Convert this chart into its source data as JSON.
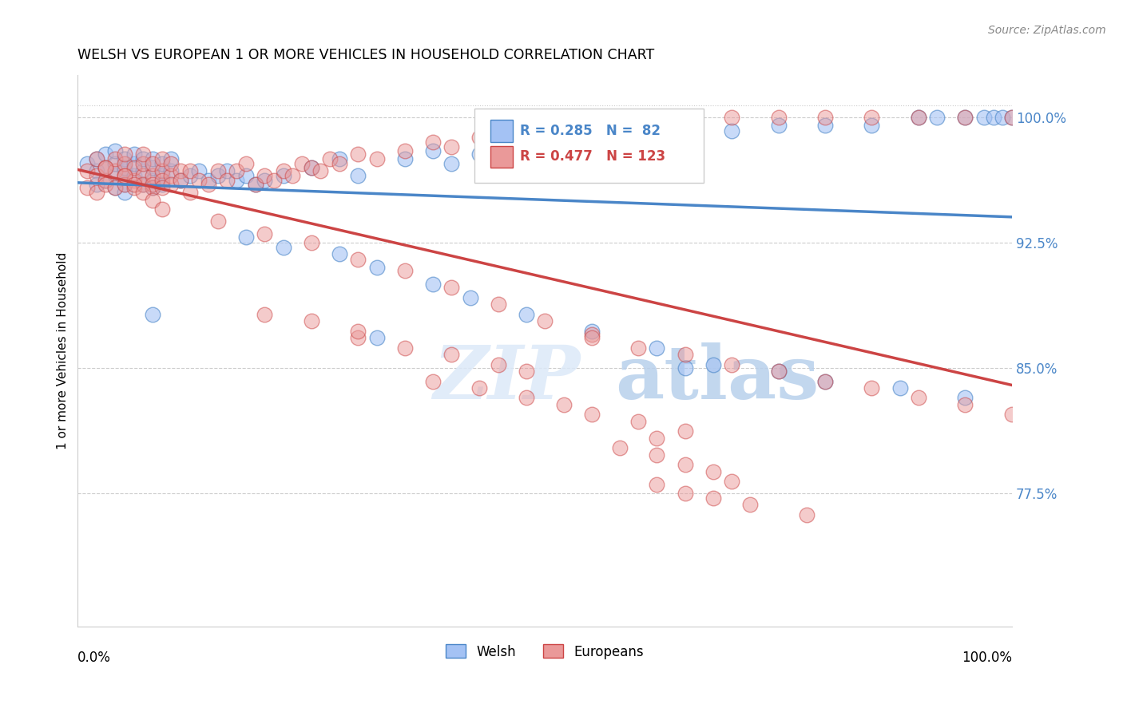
{
  "title": "WELSH VS EUROPEAN 1 OR MORE VEHICLES IN HOUSEHOLD CORRELATION CHART",
  "source": "Source: ZipAtlas.com",
  "ylabel": "1 or more Vehicles in Household",
  "yticks": [
    0.775,
    0.85,
    0.925,
    1.0
  ],
  "ytick_labels": [
    "77.5%",
    "85.0%",
    "92.5%",
    "100.0%"
  ],
  "xlim": [
    0.0,
    1.0
  ],
  "ylim": [
    0.695,
    1.025
  ],
  "welsh_R": 0.285,
  "welsh_N": 82,
  "european_R": 0.477,
  "european_N": 123,
  "welsh_color": "#a4c2f4",
  "european_color": "#ea9999",
  "welsh_line_color": "#4a86c8",
  "european_line_color": "#cc4444",
  "watermark_zip": "ZIP",
  "watermark_atlas": "atlas",
  "legend_labels": [
    "Welsh",
    "Europeans"
  ],
  "welsh_scatter_x": [
    0.01,
    0.02,
    0.02,
    0.03,
    0.03,
    0.03,
    0.04,
    0.04,
    0.04,
    0.04,
    0.05,
    0.05,
    0.05,
    0.05,
    0.05,
    0.06,
    0.06,
    0.06,
    0.07,
    0.07,
    0.07,
    0.08,
    0.08,
    0.08,
    0.08,
    0.09,
    0.09,
    0.09,
    0.1,
    0.1,
    0.11,
    0.12,
    0.13,
    0.14,
    0.15,
    0.16,
    0.17,
    0.18,
    0.19,
    0.2,
    0.22,
    0.25,
    0.28,
    0.3,
    0.35,
    0.38,
    0.4,
    0.43,
    0.47,
    0.5,
    0.55,
    0.6,
    0.65,
    0.7,
    0.75,
    0.8,
    0.85,
    0.9,
    0.92,
    0.95,
    0.97,
    0.98,
    0.99,
    1.0,
    0.18,
    0.22,
    0.28,
    0.32,
    0.38,
    0.42,
    0.48,
    0.55,
    0.62,
    0.68,
    0.75,
    0.8,
    0.88,
    0.95,
    0.02,
    0.08,
    0.32,
    0.65
  ],
  "welsh_scatter_y": [
    0.972,
    0.968,
    0.975,
    0.962,
    0.97,
    0.978,
    0.958,
    0.965,
    0.972,
    0.98,
    0.96,
    0.968,
    0.975,
    0.955,
    0.97,
    0.965,
    0.972,
    0.978,
    0.96,
    0.968,
    0.975,
    0.962,
    0.97,
    0.958,
    0.975,
    0.965,
    0.972,
    0.96,
    0.968,
    0.975,
    0.962,
    0.965,
    0.968,
    0.962,
    0.965,
    0.968,
    0.962,
    0.965,
    0.96,
    0.962,
    0.965,
    0.97,
    0.975,
    0.965,
    0.975,
    0.98,
    0.972,
    0.978,
    0.982,
    0.98,
    0.985,
    0.99,
    0.988,
    0.992,
    0.995,
    0.995,
    0.995,
    1.0,
    1.0,
    1.0,
    1.0,
    1.0,
    1.0,
    1.0,
    0.928,
    0.922,
    0.918,
    0.91,
    0.9,
    0.892,
    0.882,
    0.872,
    0.862,
    0.852,
    0.848,
    0.842,
    0.838,
    0.832,
    0.96,
    0.882,
    0.868,
    0.85
  ],
  "european_scatter_x": [
    0.01,
    0.01,
    0.02,
    0.02,
    0.02,
    0.03,
    0.03,
    0.03,
    0.04,
    0.04,
    0.04,
    0.05,
    0.05,
    0.05,
    0.05,
    0.06,
    0.06,
    0.06,
    0.07,
    0.07,
    0.07,
    0.07,
    0.08,
    0.08,
    0.08,
    0.08,
    0.09,
    0.09,
    0.09,
    0.09,
    0.1,
    0.1,
    0.1,
    0.11,
    0.11,
    0.12,
    0.12,
    0.13,
    0.14,
    0.15,
    0.16,
    0.17,
    0.18,
    0.19,
    0.2,
    0.21,
    0.22,
    0.23,
    0.24,
    0.25,
    0.26,
    0.27,
    0.28,
    0.3,
    0.32,
    0.35,
    0.38,
    0.4,
    0.43,
    0.45,
    0.48,
    0.5,
    0.55,
    0.6,
    0.65,
    0.7,
    0.75,
    0.8,
    0.85,
    0.9,
    0.95,
    1.0,
    0.15,
    0.2,
    0.25,
    0.3,
    0.35,
    0.4,
    0.45,
    0.5,
    0.55,
    0.3,
    0.35,
    0.4,
    0.45,
    0.48,
    0.38,
    0.43,
    0.48,
    0.52,
    0.55,
    0.6,
    0.65,
    0.62,
    0.58,
    0.62,
    0.65,
    0.68,
    0.7,
    0.55,
    0.6,
    0.65,
    0.7,
    0.75,
    0.8,
    0.85,
    0.9,
    0.95,
    1.0,
    0.03,
    0.05,
    0.06,
    0.07,
    0.08,
    0.09,
    0.2,
    0.25,
    0.3,
    0.62,
    0.65,
    0.68,
    0.72,
    0.78
  ],
  "european_scatter_y": [
    0.958,
    0.968,
    0.965,
    0.975,
    0.955,
    0.962,
    0.97,
    0.96,
    0.968,
    0.975,
    0.958,
    0.965,
    0.972,
    0.96,
    0.978,
    0.962,
    0.97,
    0.958,
    0.965,
    0.972,
    0.96,
    0.978,
    0.965,
    0.958,
    0.972,
    0.96,
    0.968,
    0.975,
    0.962,
    0.958,
    0.965,
    0.972,
    0.96,
    0.968,
    0.962,
    0.968,
    0.955,
    0.962,
    0.96,
    0.968,
    0.962,
    0.968,
    0.972,
    0.96,
    0.965,
    0.962,
    0.968,
    0.965,
    0.972,
    0.97,
    0.968,
    0.975,
    0.972,
    0.978,
    0.975,
    0.98,
    0.985,
    0.982,
    0.988,
    0.99,
    0.992,
    0.99,
    0.995,
    0.998,
    1.0,
    1.0,
    1.0,
    1.0,
    1.0,
    1.0,
    1.0,
    1.0,
    0.938,
    0.93,
    0.925,
    0.915,
    0.908,
    0.898,
    0.888,
    0.878,
    0.87,
    0.868,
    0.862,
    0.858,
    0.852,
    0.848,
    0.842,
    0.838,
    0.832,
    0.828,
    0.822,
    0.818,
    0.812,
    0.808,
    0.802,
    0.798,
    0.792,
    0.788,
    0.782,
    0.868,
    0.862,
    0.858,
    0.852,
    0.848,
    0.842,
    0.838,
    0.832,
    0.828,
    0.822,
    0.97,
    0.965,
    0.96,
    0.955,
    0.95,
    0.945,
    0.882,
    0.878,
    0.872,
    0.78,
    0.775,
    0.772,
    0.768,
    0.762
  ]
}
